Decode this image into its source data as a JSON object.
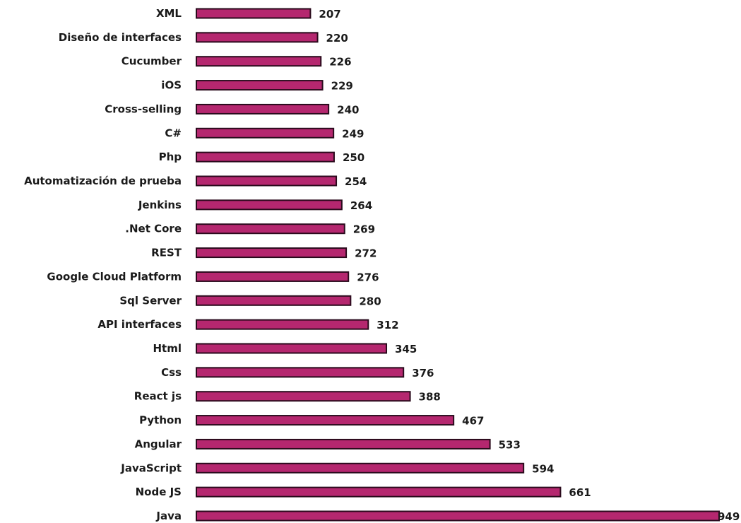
{
  "chart_data": {
    "type": "bar",
    "orientation": "horizontal",
    "title": "",
    "xlabel": "",
    "ylabel": "",
    "categories": [
      "XML",
      "Diseño de interfaces",
      "Cucumber",
      "iOS",
      "Cross-selling",
      "C#",
      "Php",
      "Automatización de prueba",
      "Jenkins",
      ".Net Core",
      "REST",
      "Google Cloud Platform",
      "Sql Server",
      "API interfaces",
      "Html",
      "Css",
      "React js",
      "Python",
      "Angular",
      "JavaScript",
      "Node JS",
      "Java"
    ],
    "values": [
      207,
      220,
      226,
      229,
      240,
      249,
      250,
      254,
      264,
      269,
      272,
      276,
      280,
      312,
      345,
      376,
      388,
      467,
      533,
      594,
      661,
      949
    ],
    "value_labels": [
      "207",
      "220",
      "226",
      "229",
      "240",
      "249",
      "250",
      "254",
      "264",
      "269",
      "272",
      "276",
      "280",
      "312",
      "345",
      "376",
      "388",
      "467",
      "533",
      "594",
      "661",
      "949"
    ],
    "xlim": [
      0,
      949
    ],
    "grid": false,
    "legend": "none",
    "colors": {
      "bar_fill": "#b5276f",
      "bar_edge": "#2a0a1c",
      "text": "#1a1a1a"
    }
  }
}
